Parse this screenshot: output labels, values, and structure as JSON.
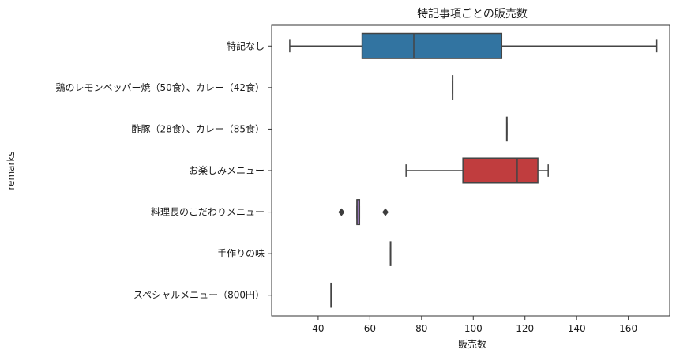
{
  "chart_data": {
    "type": "boxplot",
    "orientation": "horizontal",
    "title": "特記事項ごとの販売数",
    "xlabel": "販売数",
    "ylabel": "remarks",
    "xlim": [
      22,
      176
    ],
    "xticks": [
      40,
      60,
      80,
      100,
      120,
      140,
      160
    ],
    "xtick_labels": [
      "40",
      "60",
      "80",
      "100",
      "120",
      "140",
      "160"
    ],
    "grid": false,
    "legend": "none",
    "categories": [
      "特記なし",
      "鶏のレモンペッパー焼（50食）、カレー（42食）",
      "酢豚（28食）、カレー（85食）",
      "お楽しみメニュー",
      "料理長のこだわりメニュー",
      "手作りの味",
      "スペシャルメニュー（800円）"
    ],
    "boxes": [
      {
        "whisker_low": 29,
        "q1": 57,
        "median": 77,
        "q3": 111,
        "whisker_high": 171,
        "outliers": [],
        "color": "#3274a1"
      },
      {
        "whisker_low": 92,
        "q1": 92,
        "median": 92,
        "q3": 92,
        "whisker_high": 92,
        "outliers": [],
        "color": "#e1812c"
      },
      {
        "whisker_low": 113,
        "q1": 113,
        "median": 113,
        "q3": 113,
        "whisker_high": 113,
        "outliers": [],
        "color": "#3a923a"
      },
      {
        "whisker_low": 74,
        "q1": 96,
        "median": 117,
        "q3": 125,
        "whisker_high": 129,
        "outliers": [],
        "color": "#c03d3e"
      },
      {
        "whisker_low": 55,
        "q1": 55,
        "median": 55,
        "q3": 56,
        "whisker_high": 56,
        "outliers": [
          49,
          66
        ],
        "color": "#9372b2"
      },
      {
        "whisker_low": 68,
        "q1": 68,
        "median": 68,
        "q3": 68,
        "whisker_high": 68,
        "outliers": [],
        "color": "#845b53"
      },
      {
        "whisker_low": 45,
        "q1": 45,
        "median": 45,
        "q3": 45,
        "whisker_high": 45,
        "outliers": [],
        "color": "#d684bd"
      }
    ]
  }
}
